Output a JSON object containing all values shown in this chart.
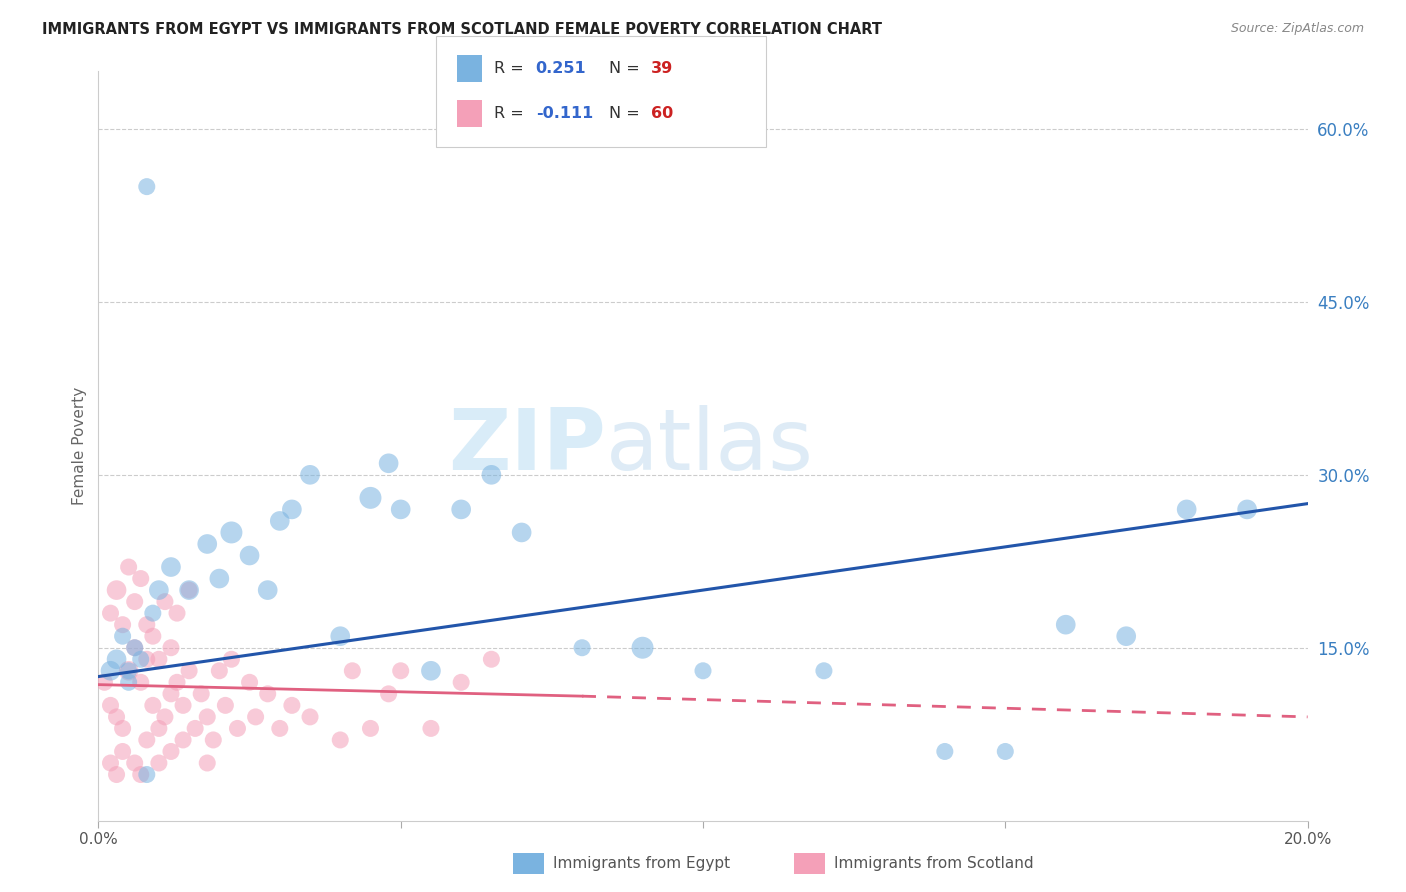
{
  "title": "IMMIGRANTS FROM EGYPT VS IMMIGRANTS FROM SCOTLAND FEMALE POVERTY CORRELATION CHART",
  "source": "Source: ZipAtlas.com",
  "ylabel": "Female Poverty",
  "xlim": [
    0.0,
    0.2
  ],
  "ylim": [
    0.0,
    0.65
  ],
  "xticks": [
    0.0,
    0.05,
    0.1,
    0.15,
    0.2
  ],
  "xticklabels": [
    "0.0%",
    "",
    "",
    "",
    "20.0%"
  ],
  "yticks_right": [
    0.15,
    0.3,
    0.45,
    0.6
  ],
  "ytick_labels_right": [
    "15.0%",
    "30.0%",
    "45.0%",
    "60.0%"
  ],
  "grid_color": "#cccccc",
  "background_color": "#ffffff",
  "watermark_zip": "ZIP",
  "watermark_atlas": "atlas",
  "egypt_color": "#7ab3e0",
  "egypt_edge": "#5a9fd4",
  "egypt_trend_color": "#2255aa",
  "scotland_color": "#f4a0b8",
  "scotland_edge": "#e07090",
  "scotland_trend_color": "#e06080",
  "legend_R_color": "#3366cc",
  "legend_N_color": "#cc2222",
  "egypt_x": [
    0.002,
    0.003,
    0.004,
    0.005,
    0.006,
    0.007,
    0.008,
    0.009,
    0.01,
    0.012,
    0.015,
    0.018,
    0.02,
    0.022,
    0.025,
    0.028,
    0.03,
    0.032,
    0.035,
    0.04,
    0.045,
    0.048,
    0.05,
    0.055,
    0.06,
    0.065,
    0.07,
    0.08,
    0.09,
    0.1,
    0.12,
    0.14,
    0.15,
    0.16,
    0.17,
    0.18,
    0.19,
    0.005,
    0.008
  ],
  "egypt_y": [
    0.13,
    0.14,
    0.16,
    0.13,
    0.15,
    0.14,
    0.55,
    0.18,
    0.2,
    0.22,
    0.2,
    0.24,
    0.21,
    0.25,
    0.23,
    0.2,
    0.26,
    0.27,
    0.3,
    0.16,
    0.28,
    0.31,
    0.27,
    0.13,
    0.27,
    0.3,
    0.25,
    0.15,
    0.15,
    0.13,
    0.13,
    0.06,
    0.06,
    0.17,
    0.16,
    0.27,
    0.27,
    0.12,
    0.04
  ],
  "egypt_sizes": [
    200,
    200,
    150,
    150,
    150,
    150,
    150,
    150,
    200,
    200,
    200,
    200,
    200,
    250,
    200,
    200,
    200,
    200,
    200,
    200,
    250,
    200,
    200,
    200,
    200,
    200,
    200,
    150,
    250,
    150,
    150,
    150,
    150,
    200,
    200,
    200,
    200,
    150,
    150
  ],
  "scotland_x": [
    0.001,
    0.002,
    0.002,
    0.003,
    0.003,
    0.004,
    0.004,
    0.005,
    0.005,
    0.006,
    0.006,
    0.007,
    0.007,
    0.008,
    0.008,
    0.009,
    0.009,
    0.01,
    0.01,
    0.011,
    0.011,
    0.012,
    0.012,
    0.013,
    0.013,
    0.014,
    0.015,
    0.015,
    0.016,
    0.017,
    0.018,
    0.019,
    0.02,
    0.021,
    0.022,
    0.023,
    0.025,
    0.026,
    0.028,
    0.03,
    0.032,
    0.035,
    0.04,
    0.042,
    0.045,
    0.048,
    0.05,
    0.055,
    0.06,
    0.065,
    0.002,
    0.003,
    0.004,
    0.006,
    0.007,
    0.008,
    0.01,
    0.012,
    0.014,
    0.018
  ],
  "scotland_y": [
    0.12,
    0.1,
    0.18,
    0.09,
    0.2,
    0.08,
    0.17,
    0.13,
    0.22,
    0.15,
    0.19,
    0.12,
    0.21,
    0.14,
    0.17,
    0.1,
    0.16,
    0.08,
    0.14,
    0.09,
    0.19,
    0.11,
    0.15,
    0.12,
    0.18,
    0.1,
    0.13,
    0.2,
    0.08,
    0.11,
    0.09,
    0.07,
    0.13,
    0.1,
    0.14,
    0.08,
    0.12,
    0.09,
    0.11,
    0.08,
    0.1,
    0.09,
    0.07,
    0.13,
    0.08,
    0.11,
    0.13,
    0.08,
    0.12,
    0.14,
    0.05,
    0.04,
    0.06,
    0.05,
    0.04,
    0.07,
    0.05,
    0.06,
    0.07,
    0.05
  ],
  "scotland_sizes": [
    150,
    150,
    150,
    150,
    200,
    150,
    150,
    200,
    150,
    150,
    150,
    150,
    150,
    150,
    150,
    150,
    150,
    150,
    150,
    150,
    150,
    150,
    150,
    150,
    150,
    150,
    150,
    150,
    150,
    150,
    150,
    150,
    150,
    150,
    150,
    150,
    150,
    150,
    150,
    150,
    150,
    150,
    150,
    150,
    150,
    150,
    150,
    150,
    150,
    150,
    150,
    150,
    150,
    150,
    150,
    150,
    150,
    150,
    150,
    150
  ],
  "egypt_trend_x0": 0.0,
  "egypt_trend_y0": 0.125,
  "egypt_trend_x1": 0.2,
  "egypt_trend_y1": 0.275,
  "scotland_trend_solid_x0": 0.0,
  "scotland_trend_solid_y0": 0.118,
  "scotland_trend_solid_x1": 0.08,
  "scotland_trend_solid_y1": 0.108,
  "scotland_trend_dash_x0": 0.08,
  "scotland_trend_dash_y0": 0.108,
  "scotland_trend_dash_x1": 0.2,
  "scotland_trend_dash_y1": 0.09
}
